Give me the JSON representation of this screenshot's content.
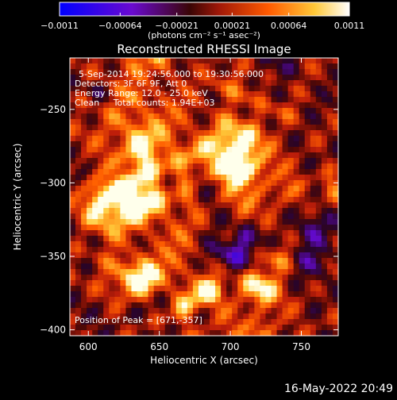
{
  "chart_data": {
    "type": "heatmap",
    "title": "Reconstructed RHESSI Image",
    "xlabel": "Heliocentric X (arcsec)",
    "ylabel": "Heliocentric Y (arcsec)",
    "xlim": [
      587,
      776
    ],
    "ylim": [
      -404,
      -215
    ],
    "x_ticks": [
      600,
      650,
      700,
      750
    ],
    "y_ticks": [
      -250,
      -300,
      -350,
      -400
    ],
    "x_tick_labels": [
      "600",
      "650",
      "700",
      "750"
    ],
    "y_tick_labels": [
      "−250",
      "−300",
      "−350",
      "−400"
    ],
    "colorbar": {
      "range": [
        -0.0011,
        0.0011
      ],
      "tick_values": [
        -0.0011,
        -0.00064,
        -0.00021,
        0.00021,
        0.00064,
        0.0011
      ],
      "tick_labels": [
        "−0.0011",
        "−0.00064",
        "−0.00021",
        "0.00021",
        "0.00064",
        "0.0011"
      ],
      "unit_label": "(photons cm⁻² s⁻¹ asec⁻²)"
    },
    "colormap": [
      "#0000ff",
      "#6a0ad0",
      "#5a0a0a",
      "#c02010",
      "#ff6a00",
      "#ffd040",
      "#ffffff"
    ],
    "peak": [
      671,
      -357
    ],
    "annotations": [
      "5-Sep-2014 19:24:56.000 to 19:30:56.000",
      "Detectors: 3F 6F 9F, Att 0",
      "Energy Range: 12.0 - 25.0 keV",
      "Clean     Total counts: 1.94E+03"
    ],
    "peak_label": "Position of Peak = [671,-357]",
    "grid": false
  },
  "footer": {
    "timestamp": "16-May-2022 20:49"
  }
}
